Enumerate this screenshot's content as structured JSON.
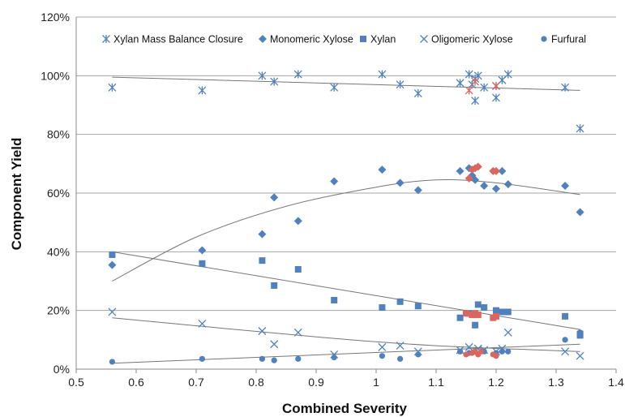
{
  "chart_data": {
    "type": "scatter",
    "title": "",
    "xlabel": "Combined Severity",
    "ylabel": "Component Yield",
    "xlim": [
      0.5,
      1.4
    ],
    "ylim": [
      0,
      120
    ],
    "x_ticks": [
      "0.5",
      "0.6",
      "0.7",
      "0.8",
      "0.9",
      "1",
      "1.1",
      "1.2",
      "1.3",
      "1.4"
    ],
    "y_ticks": [
      "0%",
      "20%",
      "40%",
      "60%",
      "80%",
      "100%",
      "120%"
    ],
    "grid": "horizontal",
    "legend_position": "top",
    "colors": {
      "series": "#4f81bd",
      "highlight": "#d9675f",
      "trend": "#777777",
      "grid": "#a6a6a6"
    },
    "series": [
      {
        "name": "Xylan Mass Balance Closure",
        "marker": "asterisk",
        "points": [
          [
            0.56,
            96
          ],
          [
            0.71,
            95
          ],
          [
            0.81,
            100
          ],
          [
            0.83,
            98
          ],
          [
            0.87,
            100.5
          ],
          [
            0.93,
            96
          ],
          [
            1.01,
            100.5
          ],
          [
            1.04,
            97
          ],
          [
            1.07,
            94
          ],
          [
            1.14,
            97.5
          ],
          [
            1.155,
            100.5
          ],
          [
            1.16,
            97
          ],
          [
            1.165,
            99
          ],
          [
            1.17,
            100
          ],
          [
            1.165,
            91.5
          ],
          [
            1.18,
            96
          ],
          [
            1.2,
            92.5
          ],
          [
            1.2,
            96.5
          ],
          [
            1.21,
            98.5
          ],
          [
            1.22,
            100.5
          ],
          [
            1.315,
            96
          ],
          [
            1.34,
            82
          ]
        ]
      },
      {
        "name": "Monomeric Xylose",
        "marker": "diamond",
        "points": [
          [
            0.56,
            35.5
          ],
          [
            0.71,
            40.5
          ],
          [
            0.81,
            46
          ],
          [
            0.83,
            58.5
          ],
          [
            0.87,
            50.5
          ],
          [
            0.93,
            64
          ],
          [
            1.01,
            68
          ],
          [
            1.04,
            63.5
          ],
          [
            1.07,
            61
          ],
          [
            1.14,
            67.5
          ],
          [
            1.155,
            68.5
          ],
          [
            1.16,
            66
          ],
          [
            1.165,
            64.5
          ],
          [
            1.18,
            62.5
          ],
          [
            1.2,
            61.5
          ],
          [
            1.21,
            67.5
          ],
          [
            1.22,
            63
          ],
          [
            1.315,
            62.5
          ],
          [
            1.34,
            53.5
          ]
        ]
      },
      {
        "name": "Xylan",
        "marker": "square",
        "points": [
          [
            0.56,
            39
          ],
          [
            0.71,
            36
          ],
          [
            0.81,
            37
          ],
          [
            0.83,
            28.5
          ],
          [
            0.87,
            34
          ],
          [
            0.93,
            23.5
          ],
          [
            1.01,
            21
          ],
          [
            1.04,
            23
          ],
          [
            1.07,
            21.5
          ],
          [
            1.14,
            17.5
          ],
          [
            1.155,
            19
          ],
          [
            1.17,
            22
          ],
          [
            1.165,
            15
          ],
          [
            1.18,
            21
          ],
          [
            1.2,
            20
          ],
          [
            1.21,
            19.5
          ],
          [
            1.22,
            19.5
          ],
          [
            1.315,
            18
          ],
          [
            1.34,
            12
          ],
          [
            1.34,
            11.5
          ]
        ]
      },
      {
        "name": "Oligomeric Xylose",
        "marker": "x",
        "points": [
          [
            0.56,
            19.5
          ],
          [
            0.71,
            15.5
          ],
          [
            0.81,
            13
          ],
          [
            0.83,
            8.5
          ],
          [
            0.87,
            12.5
          ],
          [
            0.93,
            5
          ],
          [
            1.01,
            7.5
          ],
          [
            1.04,
            8
          ],
          [
            1.07,
            6
          ],
          [
            1.14,
            6.5
          ],
          [
            1.155,
            7.5
          ],
          [
            1.17,
            7
          ],
          [
            1.18,
            6.5
          ],
          [
            1.2,
            6
          ],
          [
            1.21,
            7
          ],
          [
            1.22,
            12.5
          ],
          [
            1.315,
            6
          ],
          [
            1.34,
            4.5
          ]
        ]
      },
      {
        "name": "Furfural",
        "marker": "circle",
        "points": [
          [
            0.56,
            2.5
          ],
          [
            0.71,
            3.5
          ],
          [
            0.81,
            3.5
          ],
          [
            0.83,
            3
          ],
          [
            0.87,
            3.5
          ],
          [
            0.93,
            4
          ],
          [
            1.01,
            4.5
          ],
          [
            1.04,
            3.5
          ],
          [
            1.07,
            5
          ],
          [
            1.14,
            6
          ],
          [
            1.155,
            5.5
          ],
          [
            1.165,
            6
          ],
          [
            1.18,
            6
          ],
          [
            1.2,
            5.5
          ],
          [
            1.21,
            6
          ],
          [
            1.22,
            6
          ],
          [
            1.315,
            10
          ],
          [
            1.34,
            12.5
          ]
        ]
      }
    ],
    "highlighted_points": [
      {
        "marker": "asterisk",
        "points": [
          [
            1.155,
            95
          ],
          [
            1.165,
            98
          ],
          [
            1.2,
            96.5
          ]
        ]
      },
      {
        "marker": "diamond",
        "points": [
          [
            1.155,
            65
          ],
          [
            1.16,
            68
          ],
          [
            1.165,
            68.5
          ],
          [
            1.17,
            69
          ],
          [
            1.195,
            67.5
          ],
          [
            1.2,
            67.5
          ]
        ]
      },
      {
        "marker": "square",
        "points": [
          [
            1.15,
            19
          ],
          [
            1.16,
            18.5
          ],
          [
            1.165,
            19
          ],
          [
            1.17,
            18.5
          ],
          [
            1.195,
            17.5
          ],
          [
            1.2,
            18
          ]
        ]
      },
      {
        "marker": "circle",
        "points": [
          [
            1.15,
            5
          ],
          [
            1.16,
            5.5
          ],
          [
            1.165,
            6
          ],
          [
            1.17,
            5
          ],
          [
            1.175,
            6
          ],
          [
            1.195,
            5
          ],
          [
            1.2,
            4.5
          ]
        ]
      }
    ],
    "trendlines": [
      {
        "series": "Xylan Mass Balance Closure",
        "points": [
          [
            0.56,
            99.5
          ],
          [
            1.34,
            95
          ]
        ]
      },
      {
        "series": "Monomeric Xylose",
        "points": [
          [
            0.56,
            30
          ],
          [
            0.7,
            45
          ],
          [
            0.85,
            55.5
          ],
          [
            1.0,
            62
          ],
          [
            1.1,
            64.5
          ],
          [
            1.2,
            63.5
          ],
          [
            1.34,
            59.5
          ]
        ]
      },
      {
        "series": "Xylan",
        "points": [
          [
            0.56,
            40
          ],
          [
            1.34,
            13.5
          ]
        ]
      },
      {
        "series": "Oligomeric Xylose",
        "points": [
          [
            0.56,
            17.5
          ],
          [
            0.9,
            11
          ],
          [
            1.1,
            8
          ],
          [
            1.34,
            6
          ]
        ]
      },
      {
        "series": "Furfural",
        "points": [
          [
            0.56,
            2
          ],
          [
            1.34,
            8.5
          ]
        ]
      }
    ]
  }
}
